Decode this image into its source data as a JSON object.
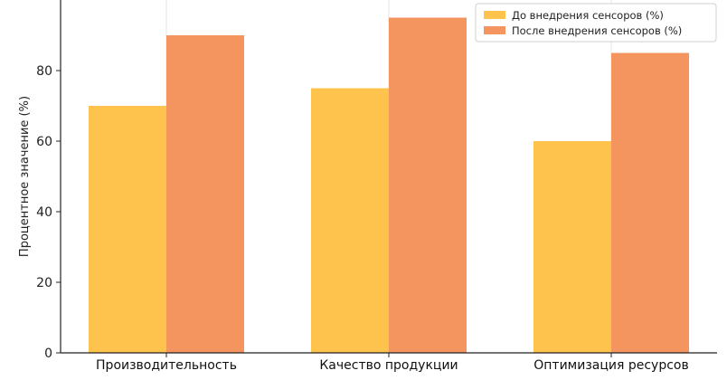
{
  "chart_data": {
    "type": "bar",
    "title": "",
    "xlabel": "",
    "ylabel": "Процентное значение (%)",
    "categories": [
      "Производительность",
      "Качество продукции",
      "Оптимизация ресурсов"
    ],
    "series": [
      {
        "name": "До внедрения сенсоров (%)",
        "values": [
          70,
          75,
          60
        ],
        "color": "#FDC34D"
      },
      {
        "name": "После внедрения сенсоров (%)",
        "values": [
          90,
          95,
          85
        ],
        "color": "#F49560"
      }
    ],
    "ylim": [
      0,
      100
    ],
    "yticks": [
      0,
      20,
      40,
      60,
      80
    ],
    "grid": "x",
    "legend_position": "top-right"
  }
}
